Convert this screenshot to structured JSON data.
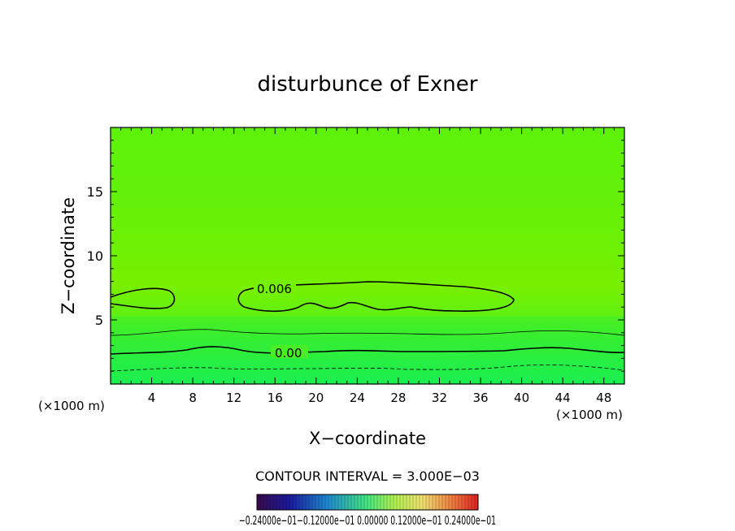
{
  "chart_data": {
    "type": "contour",
    "title": "disturbunce of Exner",
    "xlabel": "X−coordinate",
    "ylabel": "Z−coordinate",
    "x_scale_note": "(×1000 m)",
    "x_scale_note_right": "(×1000 m)",
    "xlim": [
      0,
      50
    ],
    "ylim": [
      0,
      20
    ],
    "xticks": [
      "4",
      "8",
      "12",
      "16",
      "20",
      "24",
      "28",
      "32",
      "36",
      "40",
      "44",
      "48"
    ],
    "yticks": [
      "5",
      "10",
      "15"
    ],
    "contour_interval_text": "CONTOUR INTERVAL = 3.000E−03",
    "contour_labels": [
      "0.006",
      "0.00"
    ],
    "colorbar_labels_text": "−0.24000e−01−0.12000e−01 0.00000 0.12000e−01 0.24000e−01",
    "colorbar_range": [
      -0.024,
      0.024
    ],
    "field_colors": {
      "top": "#5ef20a",
      "mid": "#78f000",
      "bottom": "#1aef5a"
    },
    "colors": {
      "line": "#000000",
      "background": "#ffffff",
      "frame": "#000000"
    }
  }
}
